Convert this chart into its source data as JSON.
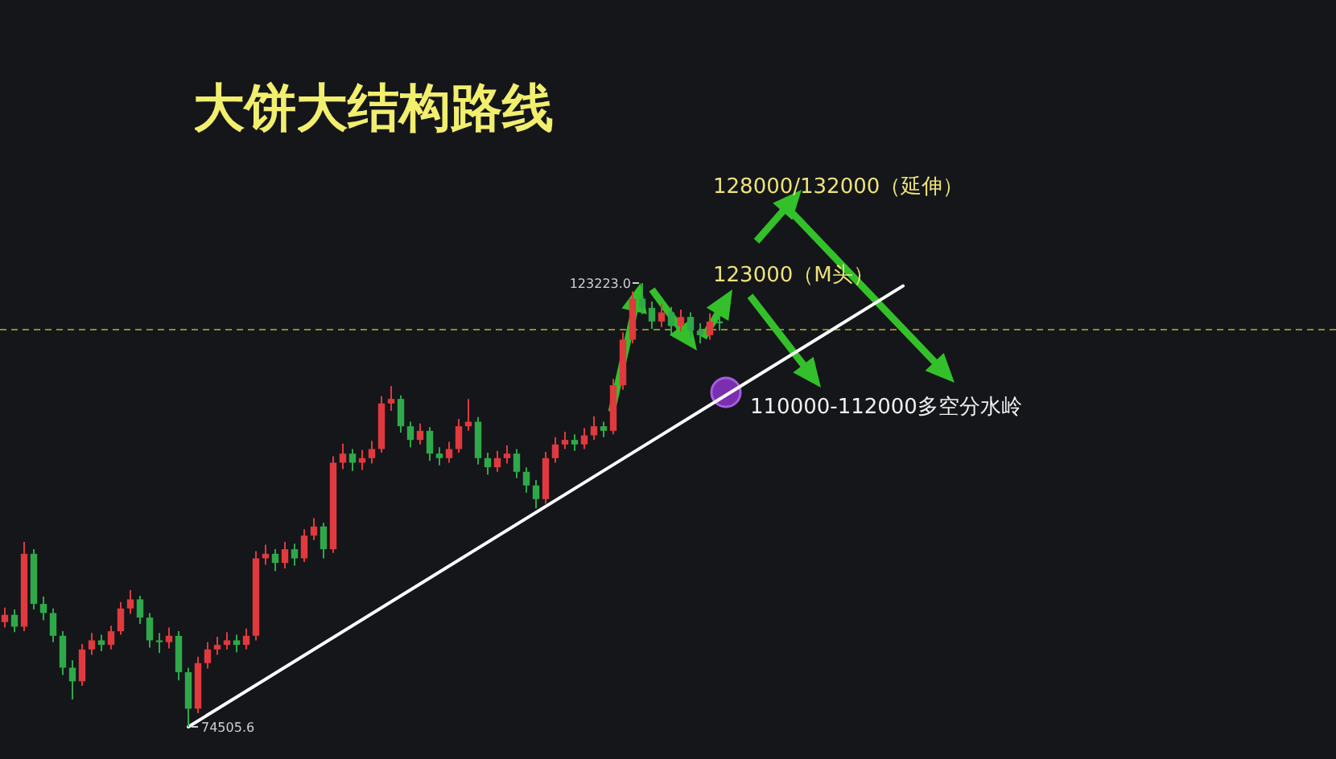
{
  "chart_data": {
    "type": "candlestick",
    "title": "大饼大结构路线",
    "categories": [
      null,
      null,
      null,
      null,
      null,
      null,
      null,
      null,
      null,
      null,
      null,
      null,
      null,
      null,
      null,
      null,
      null,
      null,
      null,
      null,
      null,
      null,
      null,
      null,
      null,
      null,
      null,
      null,
      null,
      null,
      null,
      null,
      null,
      null,
      null,
      null,
      null,
      null,
      null,
      null,
      null,
      null,
      null,
      null,
      null,
      null,
      null,
      null,
      null,
      null,
      null,
      null,
      null,
      null,
      null,
      null,
      null,
      null,
      null,
      null,
      null,
      null,
      null,
      null,
      null,
      null,
      null,
      null,
      null,
      null,
      null,
      null,
      null,
      null,
      null,
      null,
      null,
      null,
      null,
      null,
      null,
      null,
      null,
      null,
      null,
      null,
      null,
      null,
      null,
      null,
      null,
      null,
      null,
      null
    ],
    "ohlc": [
      [
        86000,
        87600,
        85400,
        86800
      ],
      [
        86800,
        87400,
        84900,
        85500
      ],
      [
        85500,
        94800,
        85000,
        93500
      ],
      [
        93500,
        94000,
        87400,
        88000
      ],
      [
        88000,
        88800,
        86200,
        87000
      ],
      [
        87000,
        87500,
        83800,
        84500
      ],
      [
        84500,
        85000,
        80200,
        81000
      ],
      [
        81000,
        81800,
        77500,
        79500
      ],
      [
        79500,
        83600,
        79000,
        83000
      ],
      [
        83000,
        84800,
        82400,
        84000
      ],
      [
        84000,
        84600,
        82800,
        83500
      ],
      [
        83500,
        85600,
        83000,
        85000
      ],
      [
        85000,
        88200,
        84600,
        87500
      ],
      [
        87500,
        89500,
        86900,
        88500
      ],
      [
        88500,
        88900,
        85800,
        86500
      ],
      [
        86500,
        87000,
        83200,
        84000
      ],
      [
        84000,
        84800,
        82600,
        83800
      ],
      [
        83800,
        85400,
        83100,
        84500
      ],
      [
        84500,
        85000,
        79600,
        80500
      ],
      [
        80500,
        81000,
        74505.6,
        76500
      ],
      [
        76500,
        82200,
        76000,
        81500
      ],
      [
        81500,
        83800,
        80900,
        83000
      ],
      [
        83000,
        84400,
        82400,
        83500
      ],
      [
        83500,
        84900,
        83000,
        84000
      ],
      [
        84000,
        84600,
        82700,
        83500
      ],
      [
        83500,
        85300,
        83000,
        84500
      ],
      [
        84500,
        93800,
        84000,
        93000
      ],
      [
        93000,
        94500,
        92300,
        93500
      ],
      [
        93500,
        94000,
        91600,
        92500
      ],
      [
        92500,
        94800,
        91900,
        94000
      ],
      [
        94000,
        94600,
        92200,
        93000
      ],
      [
        93000,
        96200,
        92600,
        95500
      ],
      [
        95500,
        97400,
        95000,
        96500
      ],
      [
        96500,
        96900,
        93000,
        94000
      ],
      [
        94000,
        104200,
        93600,
        103500
      ],
      [
        103500,
        105600,
        102800,
        104500
      ],
      [
        104500,
        105000,
        102600,
        103500
      ],
      [
        103500,
        104900,
        102700,
        104000
      ],
      [
        104000,
        105900,
        103400,
        105000
      ],
      [
        105000,
        110800,
        104600,
        110000
      ],
      [
        110000,
        111900,
        109200,
        110500
      ],
      [
        110500,
        110900,
        106800,
        107500
      ],
      [
        107500,
        108000,
        105200,
        106000
      ],
      [
        106000,
        107800,
        105500,
        107000
      ],
      [
        107000,
        107400,
        103700,
        104500
      ],
      [
        104500,
        105200,
        103200,
        104000
      ],
      [
        104000,
        105800,
        103500,
        105000
      ],
      [
        105000,
        108300,
        104600,
        107500
      ],
      [
        107500,
        110500,
        107000,
        108000
      ],
      [
        108000,
        108500,
        103300,
        104000
      ],
      [
        104000,
        104600,
        102200,
        103000
      ],
      [
        103000,
        104800,
        102500,
        104000
      ],
      [
        104000,
        105400,
        103400,
        104500
      ],
      [
        104500,
        105000,
        101800,
        102500
      ],
      [
        102500,
        103000,
        100200,
        101000
      ],
      [
        101000,
        101600,
        98500,
        99500
      ],
      [
        99500,
        104700,
        99000,
        104000
      ],
      [
        104000,
        106300,
        103500,
        105500
      ],
      [
        105500,
        106900,
        105000,
        106000
      ],
      [
        106000,
        106600,
        104800,
        105500
      ],
      [
        105500,
        107300,
        105000,
        106500
      ],
      [
        106500,
        108600,
        106000,
        107500
      ],
      [
        107500,
        108000,
        106300,
        107000
      ],
      [
        107000,
        112700,
        106600,
        112000
      ],
      [
        112000,
        117800,
        111500,
        117000
      ],
      [
        117000,
        122300,
        116600,
        121500
      ],
      [
        121500,
        123223.0,
        119800,
        120500
      ],
      [
        120500,
        121200,
        118200,
        119000
      ],
      [
        119000,
        120900,
        118400,
        120000
      ],
      [
        120000,
        120600,
        117600,
        118500
      ],
      [
        118500,
        120300,
        117900,
        119500
      ],
      [
        119500,
        120000,
        117200,
        118000
      ],
      [
        118000,
        118800,
        116600,
        117500
      ],
      [
        117500,
        119900,
        117000,
        119000
      ],
      [
        119000,
        119600,
        118000,
        118800
      ],
      null,
      null,
      null,
      null,
      null,
      null,
      null,
      null,
      null,
      null,
      null,
      null,
      null,
      null,
      null,
      null,
      null,
      null,
      null
    ],
    "colors": [
      "#e0393e",
      "#2fa84a",
      "#e0393e",
      "#2fa84a",
      "#2fa84a",
      "#2fa84a",
      "#2fa84a",
      "#2fa84a",
      "#e0393e",
      "#e0393e",
      "#2fa84a",
      "#e0393e",
      "#e0393e",
      "#e0393e",
      "#2fa84a",
      "#2fa84a",
      "#2fa84a",
      "#e0393e",
      "#2fa84a",
      "#2fa84a",
      "#e0393e",
      "#e0393e",
      "#e0393e",
      "#e0393e",
      "#2fa84a",
      "#e0393e",
      "#e0393e",
      "#e0393e",
      "#2fa84a",
      "#e0393e",
      "#2fa84a",
      "#e0393e",
      "#e0393e",
      "#2fa84a",
      "#e0393e",
      "#e0393e",
      "#2fa84a",
      "#e0393e",
      "#e0393e",
      "#e0393e",
      "#e0393e",
      "#2fa84a",
      "#2fa84a",
      "#e0393e",
      "#2fa84a",
      "#2fa84a",
      "#e0393e",
      "#e0393e",
      "#e0393e",
      "#2fa84a",
      "#2fa84a",
      "#e0393e",
      "#e0393e",
      "#2fa84a",
      "#2fa84a",
      "#2fa84a",
      "#e0393e",
      "#e0393e",
      "#e0393e",
      "#2fa84a",
      "#e0393e",
      "#e0393e",
      "#2fa84a",
      "#e0393e",
      "#e0393e",
      "#e0393e",
      "#2fa84a",
      "#2fa84a",
      "#e0393e",
      "#2fa84a",
      "#e0393e",
      "#2fa84a",
      "#2fa84a",
      "#e0393e",
      "#2fa84a",
      null,
      null,
      null,
      null,
      null,
      null,
      null,
      null,
      null,
      null,
      null,
      null,
      null,
      null,
      null,
      null,
      null,
      null,
      null
    ],
    "series": [
      {
        "type": "line",
        "color": "#ffffff",
        "values": [
          null,
          null,
          null,
          null,
          null,
          null,
          null,
          null,
          null,
          null,
          null,
          null,
          null,
          null,
          null,
          null,
          null,
          null,
          null,
          74500,
          null,
          null,
          null,
          null,
          null,
          null,
          null,
          null,
          null,
          null,
          null,
          null,
          null,
          null,
          null,
          null,
          null,
          null,
          null,
          null,
          null,
          null,
          null,
          null,
          null,
          null,
          null,
          null,
          null,
          null,
          null,
          null,
          null,
          null,
          null,
          null,
          null,
          null,
          null,
          null,
          null,
          null,
          null,
          null,
          null,
          null,
          null,
          null,
          null,
          null,
          null,
          null,
          null,
          null,
          null,
          null,
          null,
          null,
          null,
          null,
          null,
          null,
          null,
          null,
          null,
          null,
          null,
          null,
          null,
          null,
          null,
          null,
          null,
          122900
        ]
      }
    ],
    "ref_lines": [
      {
        "axis": "y",
        "value": 118100,
        "color": "#8c8c2a",
        "line_style": "dashed"
      }
    ],
    "annotations": [
      "123223.0",
      "74505.6",
      "128000/132000（延伸）",
      "123000（M头）",
      "110000-112000多空分水岭"
    ]
  }
}
